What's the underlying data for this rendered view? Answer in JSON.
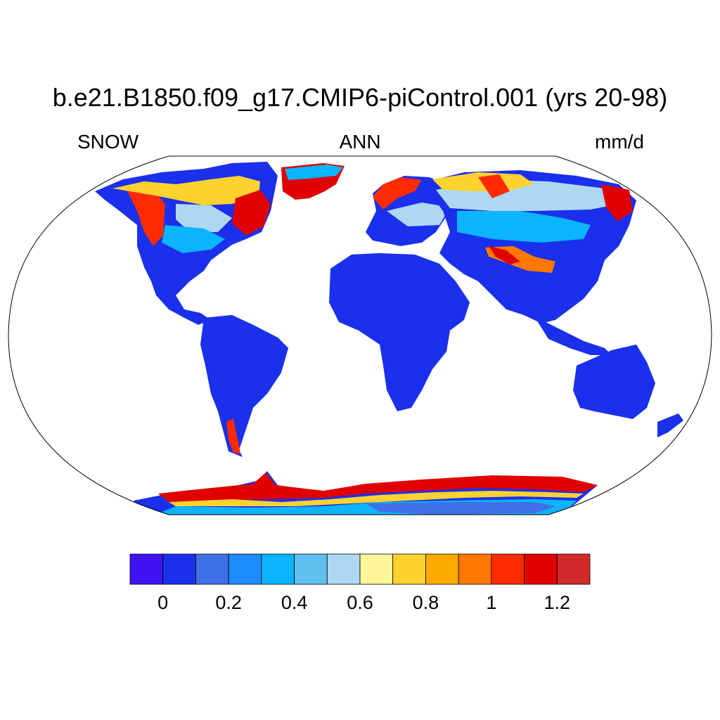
{
  "title": "b.e21.B1850.f09_g17.CMIP6-piControl.001 (yrs 20-98)",
  "left_label": "SNOW",
  "center_label": "ANN",
  "right_label": "mm/d",
  "colorbar": {
    "colors": [
      "#3f13f3",
      "#1a30ec",
      "#4070e8",
      "#1e8cff",
      "#0ab4ff",
      "#5ec0f0",
      "#aed8f2",
      "#fff59a",
      "#ffd230",
      "#ffaa00",
      "#ff7800",
      "#ff2a00",
      "#e00000",
      "#d22a2a"
    ],
    "ticks": [
      {
        "label": "0",
        "boundary": 1
      },
      {
        "label": "0.2",
        "boundary": 3
      },
      {
        "label": "0.4",
        "boundary": 5
      },
      {
        "label": "0.6",
        "boundary": 7
      },
      {
        "label": "0.8",
        "boundary": 9
      },
      {
        "label": "1",
        "boundary": 11
      },
      {
        "label": "1.2",
        "boundary": 13
      }
    ]
  }
}
